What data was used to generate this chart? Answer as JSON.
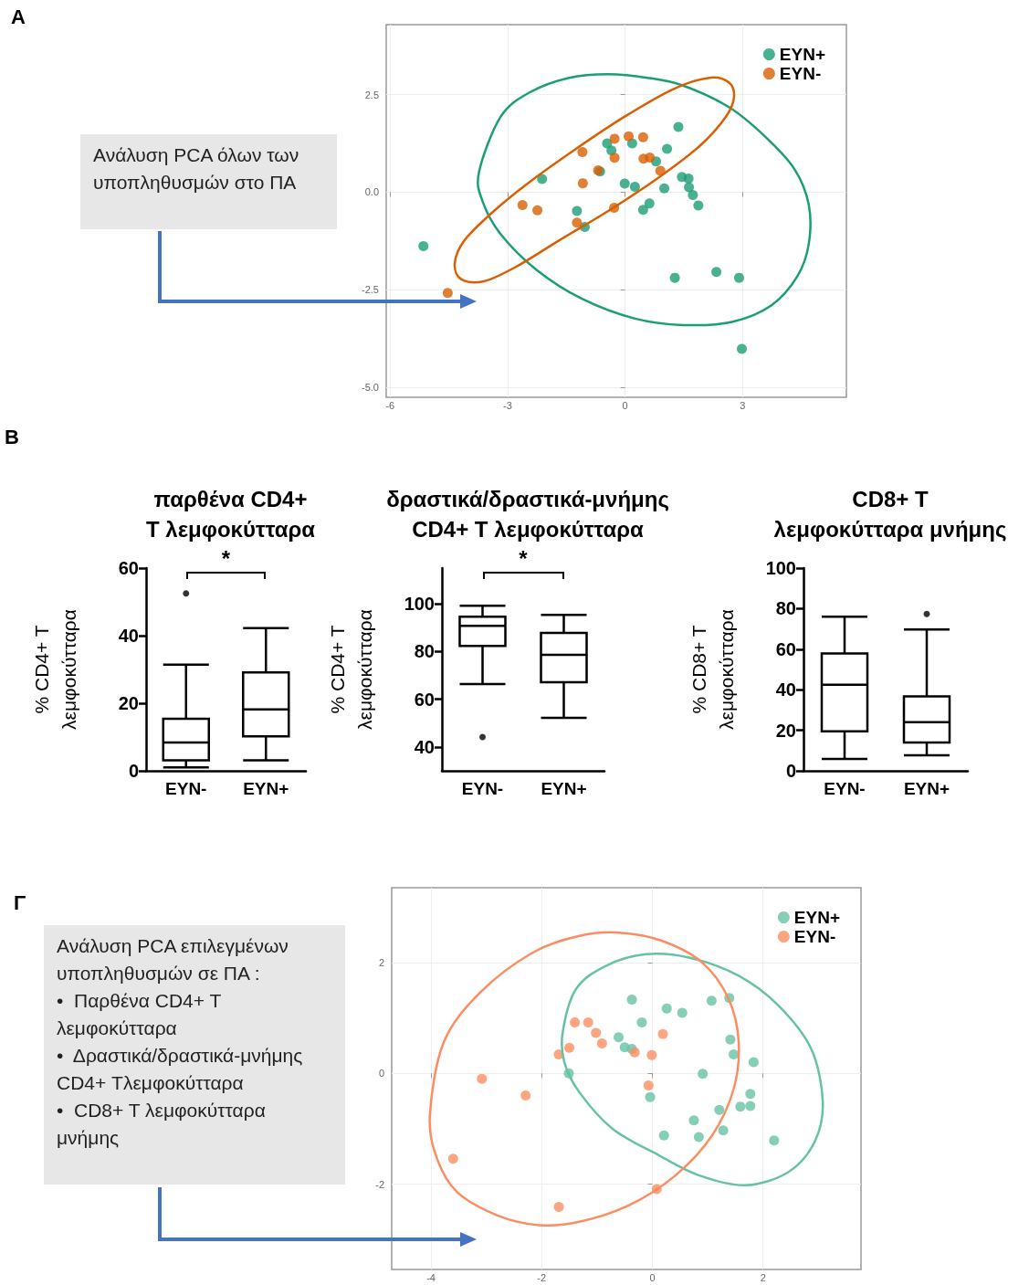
{
  "chart_data": [
    {
      "type": "scatter",
      "annotations": [
        "A",
        "Ανάλυση PCA όλων των υποπληθυσμών στο ΠΑ"
      ],
      "xlim": [
        -6.1,
        5.65
      ],
      "xticks": [
        -6,
        -3,
        0,
        3
      ],
      "ylim": [
        -5.25,
        4.29
      ],
      "yticks": [
        {
          "value": -5,
          "label": "-5.0"
        },
        {
          "value": -2.5,
          "label": "-2.5"
        },
        {
          "value": 0,
          "label": "0.0"
        },
        {
          "value": 2.5,
          "label": "2.5"
        }
      ],
      "grid": true,
      "legend": "top right",
      "series": [
        {
          "name": "EYN+",
          "color": "#1b9e77",
          "marker": "circle",
          "x": [
            -5.15,
            -2.12,
            -0.46,
            -0.35,
            -0.64,
            0.18,
            -0.01,
            0.25,
            1.36,
            1.07,
            0.79,
            1.45,
            1.62,
            1.63,
            1.73,
            1.87,
            1.0,
            0.62,
            0.46,
            -1.23,
            -1.03,
            1.27,
            2.33,
            2.91,
            2.98
          ],
          "values": [
            -1.38,
            0.34,
            1.25,
            1.07,
            0.53,
            1.25,
            0.22,
            0.14,
            1.67,
            1.11,
            0.79,
            0.39,
            0.35,
            0.13,
            -0.07,
            -0.34,
            0.1,
            -0.29,
            -0.45,
            -0.48,
            -0.89,
            -2.19,
            -2.04,
            -2.19,
            -4.01
          ]
        },
        {
          "name": "EYN-",
          "color": "#d95f02",
          "marker": "circle",
          "x": [
            -4.53,
            -2.62,
            -2.24,
            -1.23,
            -1.09,
            -1.08,
            -0.69,
            -0.27,
            0.09,
            0.46,
            -0.27,
            0.47,
            0.63,
            0.9,
            -0.28
          ],
          "values": [
            -2.58,
            -0.33,
            -0.46,
            -0.78,
            1.03,
            0.23,
            0.56,
            1.37,
            1.43,
            1.41,
            0.88,
            0.86,
            0.89,
            0.55,
            -0.4
          ]
        }
      ]
    },
    {
      "type": "box",
      "title": "παρθένα CD4+\nT λεμφοκύτταρα",
      "ylabel": "% CD4+ T\nλεμφοκύτταρα",
      "annotations": [
        "B",
        "*"
      ],
      "categories": [
        "EYN-",
        "EYN+"
      ],
      "ylim": [
        0,
        60
      ],
      "yticks": [
        0,
        20,
        40,
        60
      ],
      "grid": false,
      "boxes": [
        {
          "low": 1,
          "q1": 3.1,
          "median": 8.4,
          "q3": 15.4,
          "high": 31.4,
          "outliers": [
            52.5
          ]
        },
        {
          "low": 3.1,
          "q1": 10.2,
          "median": 18.2,
          "q3": 29.1,
          "high": 42.2
        }
      ]
    },
    {
      "type": "box",
      "title": "δραστικά/δραστικά-μνήμης\nCD4+ T λεμφοκύτταρα",
      "ylabel": "% CD4+ T\nλεμφοκύτταρα",
      "annotations": [
        "*"
      ],
      "categories": [
        "EYN-",
        "EYN+"
      ],
      "ylim": [
        30,
        115
      ],
      "yticks": [
        40,
        60,
        80,
        100
      ],
      "grid": false,
      "boxes": [
        {
          "low": 66.4,
          "q1": 82.4,
          "median": 90.8,
          "q3": 94.6,
          "high": 99.2,
          "outliers": [
            44.2
          ]
        },
        {
          "low": 52.2,
          "q1": 67.1,
          "median": 78.6,
          "q3": 87.8,
          "high": 95.4
        }
      ]
    },
    {
      "type": "box",
      "title": "CD8+ T\nλεμφοκύτταρα μνήμης",
      "ylabel": "% CD8+ T\nλεμφοκύτταρα",
      "categories": [
        "EYN-",
        "EYN+"
      ],
      "ylim": [
        0,
        100
      ],
      "yticks": [
        0,
        20,
        40,
        60,
        80,
        100
      ],
      "grid": false,
      "boxes": [
        {
          "low": 5.9,
          "q1": 19.5,
          "median": 42.5,
          "q3": 57.9,
          "high": 76
        },
        {
          "low": 7.7,
          "q1": 14,
          "median": 24,
          "q3": 36.7,
          "high": 69.7,
          "outliers": [
            77.4
          ]
        }
      ]
    },
    {
      "type": "scatter",
      "annotations": [
        "Γ",
        "Ανάλυση PCA επιλεγμένων υποπληθυσμών σε ΠΑ :\n•  Παρθένα CD4+ T λεμφοκύτταρα\n•  Δραστικά/δραστικά-μνήμης CD4+ Τλεμφοκύτταρα\n•  CD8+ T λεμφοκύτταρα μνήμης"
      ],
      "xlim": [
        -4.71,
        3.77
      ],
      "xticks": [
        -4,
        -2,
        0,
        2
      ],
      "ylim": [
        -3.54,
        3.35
      ],
      "yticks": [
        -2,
        0,
        2
      ],
      "grid": true,
      "legend": "top right",
      "series": [
        {
          "name": "EYN+",
          "color": "#66c2a5",
          "marker": "circle",
          "x": [
            -0.37,
            0.26,
            0.54,
            1.07,
            1.39,
            -0.19,
            -0.61,
            -0.5,
            -0.37,
            1.41,
            1.47,
            1.83,
            -1.51,
            0.91,
            -0.04,
            1.77,
            1.59,
            1.77,
            1.21,
            0.75,
            0.21,
            0.84,
            1.28,
            2.2
          ],
          "values": [
            1.33,
            1.17,
            1.09,
            1.31,
            1.36,
            0.92,
            0.65,
            0.47,
            0.44,
            0.61,
            0.34,
            0.2,
            0.0,
            -0.01,
            -0.43,
            -0.37,
            -0.6,
            -0.59,
            -0.66,
            -0.85,
            -1.12,
            -1.15,
            -1.03,
            -1.21
          ]
        },
        {
          "name": "EYN-",
          "color": "#fc8d62",
          "marker": "circle",
          "x": [
            -1.4,
            -1.16,
            -1.02,
            -0.91,
            -1.5,
            -1.69,
            -0.32,
            -0.01,
            0.19,
            -3.08,
            -2.29,
            -0.07,
            -3.6,
            -1.69,
            0.08
          ],
          "values": [
            0.92,
            0.92,
            0.73,
            0.54,
            0.46,
            0.34,
            0.38,
            0.33,
            0.71,
            -0.1,
            -0.4,
            -0.22,
            -1.54,
            -2.41,
            -2.09
          ]
        }
      ]
    }
  ]
}
